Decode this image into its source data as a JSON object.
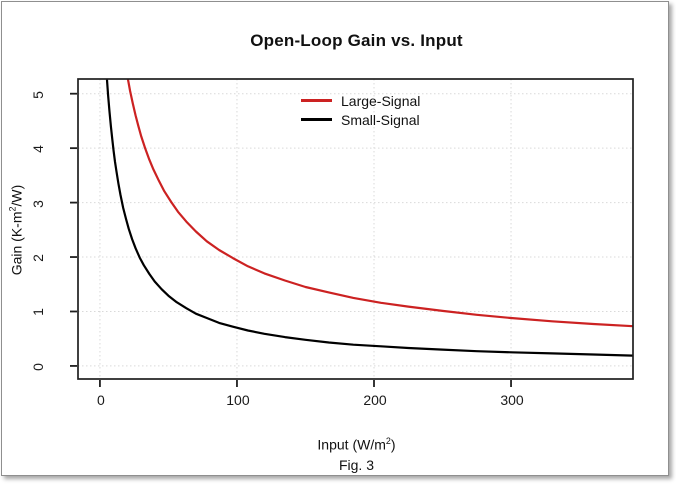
{
  "figure": {
    "title": "Open-Loop Gain vs. Input",
    "caption": "Fig. 3"
  },
  "axes": {
    "x": {
      "title_main": "Input (W/m",
      "title_sup": "2",
      "title_end": ")",
      "ticks": [
        0,
        100,
        200,
        300
      ]
    },
    "y": {
      "title_main": "Gain (K-m",
      "title_sup": "2",
      "title_end": "/W)",
      "ticks": [
        0,
        1,
        2,
        3,
        4,
        5
      ]
    }
  },
  "legend": {
    "items": [
      {
        "label": "Large-Signal",
        "color": "#cc2222"
      },
      {
        "label": "Small-Signal",
        "color": "#000000"
      }
    ]
  },
  "style": {
    "grid_color": "#d9d9d9",
    "box_color": "#1f1f1f",
    "curve_width": 2.2
  },
  "chart_data": {
    "type": "line",
    "title": "Open-Loop Gain vs. Input",
    "xlabel": "Input (W/m^2)",
    "ylabel": "Gain (K-m^2/W)",
    "xlim": [
      -16,
      389
    ],
    "ylim": [
      -0.24,
      5.27
    ],
    "x_ticks": [
      0,
      100,
      200,
      300
    ],
    "y_ticks": [
      0,
      1,
      2,
      3,
      4,
      5
    ],
    "grid": "dotted light gray at every tick",
    "legend_position": "inside top-center",
    "series": [
      {
        "name": "Large-Signal",
        "color": "#cc2222",
        "points": [
          [
            20.4,
            5.27
          ],
          [
            22,
            5.05
          ],
          [
            24,
            4.82
          ],
          [
            26,
            4.6
          ],
          [
            28,
            4.41
          ],
          [
            30,
            4.23
          ],
          [
            33,
            4.0
          ],
          [
            36,
            3.79
          ],
          [
            39,
            3.61
          ],
          [
            43,
            3.4
          ],
          [
            47,
            3.21
          ],
          [
            52,
            3.01
          ],
          [
            57,
            2.83
          ],
          [
            63,
            2.65
          ],
          [
            70,
            2.47
          ],
          [
            78,
            2.29
          ],
          [
            87,
            2.13
          ],
          [
            97,
            1.98
          ],
          [
            108,
            1.83
          ],
          [
            120,
            1.7
          ],
          [
            135,
            1.57
          ],
          [
            150,
            1.45
          ],
          [
            167,
            1.35
          ],
          [
            185,
            1.25
          ],
          [
            205,
            1.16
          ],
          [
            225,
            1.09
          ],
          [
            250,
            1.01
          ],
          [
            275,
            0.94
          ],
          [
            300,
            0.88
          ],
          [
            330,
            0.82
          ],
          [
            360,
            0.77
          ],
          [
            389,
            0.73
          ]
        ]
      },
      {
        "name": "Small-Signal",
        "color": "#000000",
        "points": [
          [
            5.1,
            5.28
          ],
          [
            6,
            4.97
          ],
          [
            7,
            4.67
          ],
          [
            8,
            4.4
          ],
          [
            9,
            4.16
          ],
          [
            10,
            3.95
          ],
          [
            11,
            3.75
          ],
          [
            12,
            3.58
          ],
          [
            13.5,
            3.35
          ],
          [
            15,
            3.14
          ],
          [
            17,
            2.9
          ],
          [
            19,
            2.7
          ],
          [
            21,
            2.52
          ],
          [
            23.5,
            2.33
          ],
          [
            26,
            2.16
          ],
          [
            29,
            1.99
          ],
          [
            32,
            1.85
          ],
          [
            36,
            1.69
          ],
          [
            40,
            1.55
          ],
          [
            45,
            1.41
          ],
          [
            50,
            1.29
          ],
          [
            56,
            1.17
          ],
          [
            63,
            1.06
          ],
          [
            70,
            0.96
          ],
          [
            78,
            0.88
          ],
          [
            87,
            0.79
          ],
          [
            97,
            0.72
          ],
          [
            108,
            0.65
          ],
          [
            120,
            0.59
          ],
          [
            135,
            0.53
          ],
          [
            150,
            0.48
          ],
          [
            167,
            0.43
          ],
          [
            185,
            0.39
          ],
          [
            205,
            0.36
          ],
          [
            225,
            0.33
          ],
          [
            250,
            0.3
          ],
          [
            275,
            0.27
          ],
          [
            300,
            0.25
          ],
          [
            330,
            0.23
          ],
          [
            360,
            0.21
          ],
          [
            389,
            0.19
          ]
        ]
      }
    ]
  }
}
